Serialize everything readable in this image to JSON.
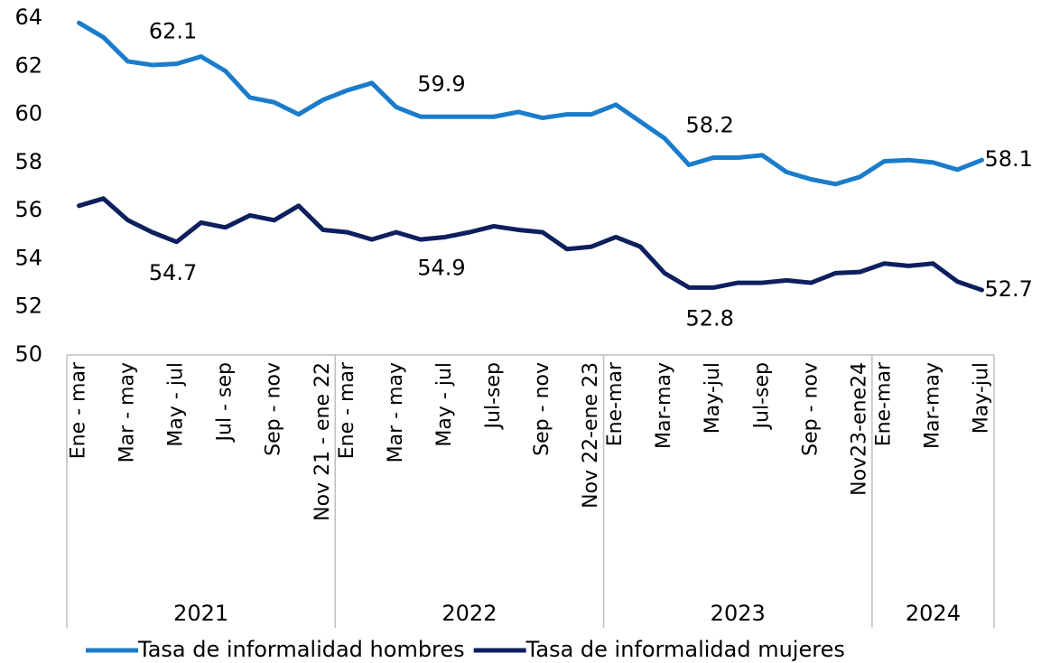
{
  "chart_data": {
    "type": "line",
    "groups": [
      {
        "label": "2021",
        "categories": [
          "Ene - mar",
          null,
          "Mar - may",
          null,
          "May - jul",
          null,
          "Jul - sep",
          null,
          "Sep - nov",
          null,
          "Nov 21 - ene 22"
        ]
      },
      {
        "label": "2022",
        "categories": [
          "Ene - mar",
          null,
          "Mar - may",
          null,
          "May - jul",
          null,
          "Jul-sep",
          null,
          "Sep - nov",
          null,
          "Nov 22-ene 23"
        ]
      },
      {
        "label": "2023",
        "categories": [
          "Ene-mar",
          null,
          "Mar-may",
          null,
          "May-jul",
          null,
          "Jul-sep",
          null,
          "Sep - nov",
          null,
          "Nov23-ene24"
        ]
      },
      {
        "label": "2024",
        "categories": [
          "Ene-mar",
          null,
          "Mar-may",
          null,
          "May-jul"
        ]
      }
    ],
    "series": [
      {
        "name": "Tasa de informalidad hombres",
        "color": "#1a7ccb",
        "values": [
          63.8,
          63.2,
          62.2,
          62.05,
          62.1,
          62.4,
          61.8,
          60.7,
          60.5,
          60.0,
          60.6,
          61.0,
          61.3,
          60.3,
          59.9,
          59.9,
          59.9,
          59.9,
          60.1,
          59.85,
          60.0,
          60.0,
          60.4,
          59.7,
          59.0,
          57.9,
          58.2,
          58.2,
          58.3,
          57.6,
          57.3,
          57.1,
          57.4,
          58.05,
          58.1,
          58.0,
          57.7,
          58.1
        ],
        "value_labels": [
          null,
          null,
          null,
          null,
          "62.1",
          null,
          null,
          null,
          null,
          null,
          null,
          null,
          null,
          null,
          null,
          "59.9",
          null,
          null,
          null,
          null,
          null,
          null,
          null,
          null,
          null,
          null,
          "58.2",
          null,
          null,
          null,
          null,
          null,
          null,
          null,
          null,
          null,
          null,
          "58.1"
        ]
      },
      {
        "name": "Tasa de informalidad mujeres",
        "color": "#0d1f5e",
        "values": [
          56.2,
          56.5,
          55.6,
          55.1,
          54.7,
          55.5,
          55.3,
          55.8,
          55.6,
          56.2,
          55.2,
          55.1,
          54.8,
          55.1,
          54.8,
          54.9,
          55.1,
          55.35,
          55.2,
          55.1,
          54.4,
          54.5,
          54.9,
          54.5,
          53.4,
          52.8,
          52.8,
          53.0,
          53.0,
          53.1,
          53.0,
          53.4,
          53.45,
          53.8,
          53.7,
          53.8,
          53.05,
          52.7
        ],
        "value_labels": [
          null,
          null,
          null,
          null,
          "54.7",
          null,
          null,
          null,
          null,
          null,
          null,
          null,
          null,
          null,
          null,
          "54.9",
          null,
          null,
          null,
          null,
          null,
          null,
          null,
          null,
          null,
          null,
          "52.8",
          null,
          null,
          null,
          null,
          null,
          null,
          null,
          null,
          null,
          null,
          "52.7"
        ]
      }
    ],
    "ylim": [
      50,
      64
    ],
    "yticks": [
      50,
      52,
      54,
      56,
      58,
      60,
      62,
      64
    ],
    "grid": false,
    "legend": "bottom"
  }
}
